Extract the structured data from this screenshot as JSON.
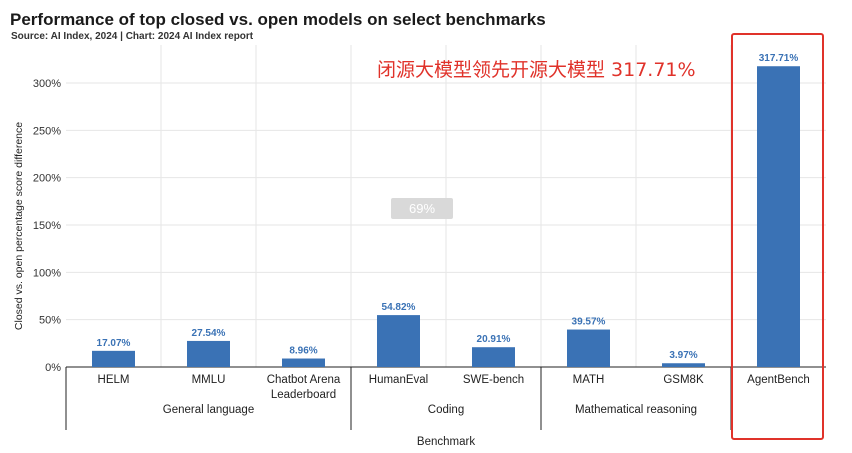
{
  "header": {
    "title": "Performance of top closed vs. open models on select benchmarks",
    "source": "Source: AI Index, 2024 | Chart: 2024 AI Index report"
  },
  "annotation": "闭源大模型领先开源大模型 317.71%",
  "watermark": "69%",
  "colors": {
    "bar": "#3a72b5",
    "highlight": "#e0322a",
    "grid": "#e6e6e6"
  },
  "chart_data": {
    "type": "bar",
    "title": "Performance of top closed vs. open models on select benchmarks",
    "ylabel": "Closed vs. open percentage score difference",
    "xlabel": "Benchmark",
    "ylim": [
      0,
      330
    ],
    "yticks": [
      0,
      50,
      100,
      150,
      200,
      250,
      300
    ],
    "ytick_labels": [
      "0%",
      "50%",
      "100%",
      "150%",
      "200%",
      "250%",
      "300%"
    ],
    "grid": true,
    "categories": [
      "HELM",
      "MMLU",
      "Chatbot Arena\nLeaderboard",
      "HumanEval",
      "SWE-bench",
      "MATH",
      "GSM8K",
      "AgentBench"
    ],
    "values": [
      17.07,
      27.54,
      8.96,
      54.82,
      20.91,
      39.57,
      3.97,
      317.71
    ],
    "value_labels": [
      "17.07%",
      "27.54%",
      "8.96%",
      "54.82%",
      "20.91%",
      "39.57%",
      "3.97%",
      "317.71%"
    ],
    "groups": [
      {
        "name": "General language",
        "count": 3
      },
      {
        "name": "Coding",
        "count": 2
      },
      {
        "name": "Mathematical reasoning",
        "count": 2
      },
      {
        "name": "",
        "count": 1
      }
    ]
  }
}
